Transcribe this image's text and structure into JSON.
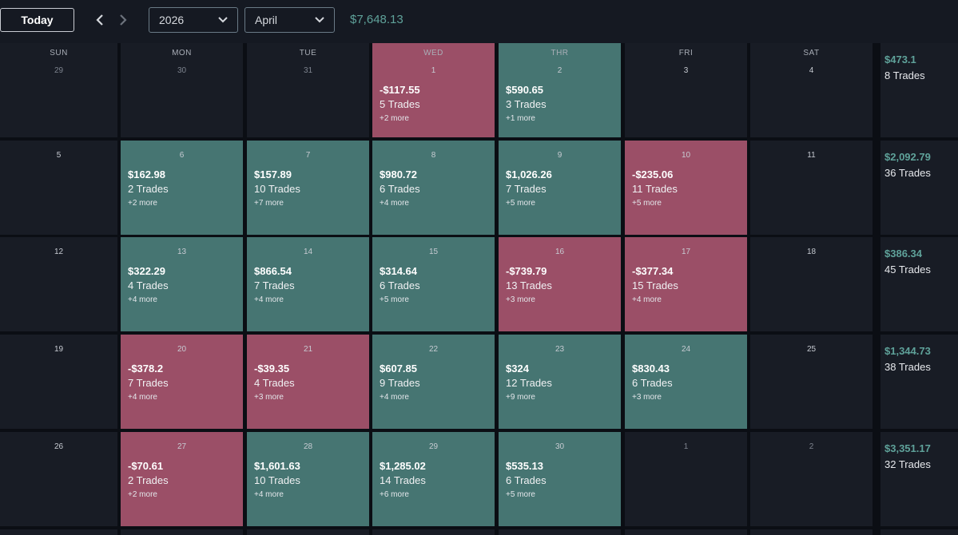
{
  "toolbar": {
    "today_label": "Today",
    "year_value": "2026",
    "month_value": "April",
    "balance": "$7,648.13"
  },
  "colors": {
    "profit": "#467572",
    "loss": "#9b4f67",
    "empty": "#181c25",
    "accent": "#5fa29a"
  },
  "weekdays": [
    "SUN",
    "MON",
    "TUE",
    "WED",
    "THR",
    "FRI",
    "SAT"
  ],
  "weeks": [
    {
      "days": [
        {
          "day": "29",
          "muted": true
        },
        {
          "day": "30",
          "muted": true
        },
        {
          "day": "31",
          "muted": true
        },
        {
          "day": "1",
          "pnl": "-$117.55",
          "trades": "5 Trades",
          "more": "+2 more",
          "status": "loss"
        },
        {
          "day": "2",
          "pnl": "$590.65",
          "trades": "3 Trades",
          "more": "+1 more",
          "status": "profit"
        },
        {
          "day": "3"
        },
        {
          "day": "4"
        }
      ],
      "summary": {
        "pnl": "$473.1",
        "trades": "8 Trades"
      }
    },
    {
      "days": [
        {
          "day": "5"
        },
        {
          "day": "6",
          "pnl": "$162.98",
          "trades": "2 Trades",
          "more": "+2 more",
          "status": "profit"
        },
        {
          "day": "7",
          "pnl": "$157.89",
          "trades": "10 Trades",
          "more": "+7 more",
          "status": "profit"
        },
        {
          "day": "8",
          "pnl": "$980.72",
          "trades": "6 Trades",
          "more": "+4 more",
          "status": "profit"
        },
        {
          "day": "9",
          "pnl": "$1,026.26",
          "trades": "7 Trades",
          "more": "+5 more",
          "status": "profit"
        },
        {
          "day": "10",
          "pnl": "-$235.06",
          "trades": "11 Trades",
          "more": "+5 more",
          "status": "loss"
        },
        {
          "day": "11"
        }
      ],
      "summary": {
        "pnl": "$2,092.79",
        "trades": "36 Trades"
      }
    },
    {
      "days": [
        {
          "day": "12"
        },
        {
          "day": "13",
          "pnl": "$322.29",
          "trades": "4 Trades",
          "more": "+4 more",
          "status": "profit"
        },
        {
          "day": "14",
          "pnl": "$866.54",
          "trades": "7 Trades",
          "more": "+4 more",
          "status": "profit"
        },
        {
          "day": "15",
          "pnl": "$314.64",
          "trades": "6 Trades",
          "more": "+5 more",
          "status": "profit"
        },
        {
          "day": "16",
          "pnl": "-$739.79",
          "trades": "13 Trades",
          "more": "+3 more",
          "status": "loss"
        },
        {
          "day": "17",
          "pnl": "-$377.34",
          "trades": "15 Trades",
          "more": "+4 more",
          "status": "loss"
        },
        {
          "day": "18"
        }
      ],
      "summary": {
        "pnl": "$386.34",
        "trades": "45 Trades"
      }
    },
    {
      "days": [
        {
          "day": "19"
        },
        {
          "day": "20",
          "pnl": "-$378.2",
          "trades": "7 Trades",
          "more": "+4 more",
          "status": "loss"
        },
        {
          "day": "21",
          "pnl": "-$39.35",
          "trades": "4 Trades",
          "more": "+3 more",
          "status": "loss"
        },
        {
          "day": "22",
          "pnl": "$607.85",
          "trades": "9 Trades",
          "more": "+4 more",
          "status": "profit"
        },
        {
          "day": "23",
          "pnl": "$324",
          "trades": "12 Trades",
          "more": "+9 more",
          "status": "profit"
        },
        {
          "day": "24",
          "pnl": "$830.43",
          "trades": "6 Trades",
          "more": "+3 more",
          "status": "profit"
        },
        {
          "day": "25"
        }
      ],
      "summary": {
        "pnl": "$1,344.73",
        "trades": "38 Trades"
      }
    },
    {
      "days": [
        {
          "day": "26"
        },
        {
          "day": "27",
          "pnl": "-$70.61",
          "trades": "2 Trades",
          "more": "+2 more",
          "status": "loss"
        },
        {
          "day": "28",
          "pnl": "$1,601.63",
          "trades": "10 Trades",
          "more": "+4 more",
          "status": "profit"
        },
        {
          "day": "29",
          "pnl": "$1,285.02",
          "trades": "14 Trades",
          "more": "+6 more",
          "status": "profit"
        },
        {
          "day": "30",
          "pnl": "$535.13",
          "trades": "6 Trades",
          "more": "+5 more",
          "status": "profit"
        },
        {
          "day": "1",
          "muted": true
        },
        {
          "day": "2",
          "muted": true
        }
      ],
      "summary": {
        "pnl": "$3,351.17",
        "trades": "32 Trades"
      }
    }
  ]
}
